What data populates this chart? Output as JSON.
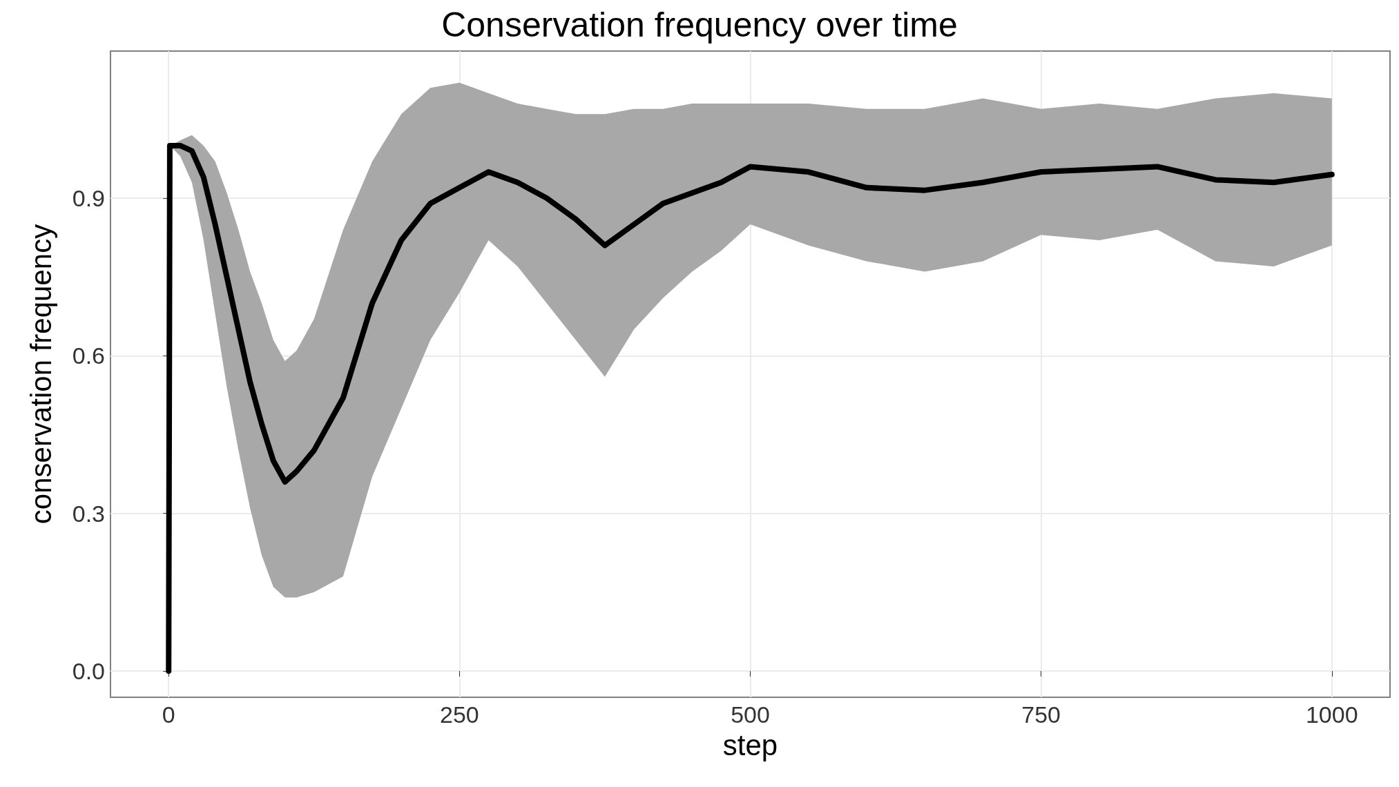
{
  "chart_data": {
    "type": "line",
    "title": "Conservation frequency over time",
    "xlabel": "step",
    "ylabel": "conservation frequency",
    "x": [
      0,
      1,
      10,
      20,
      30,
      40,
      50,
      60,
      70,
      80,
      90,
      100,
      110,
      125,
      150,
      175,
      200,
      225,
      250,
      275,
      300,
      325,
      350,
      375,
      400,
      425,
      450,
      475,
      500,
      550,
      600,
      650,
      700,
      750,
      800,
      850,
      900,
      950,
      1000
    ],
    "series": [
      {
        "color": "#000000",
        "values": [
          0,
          1.0,
          1.0,
          0.99,
          0.94,
          0.85,
          0.75,
          0.65,
          0.55,
          0.47,
          0.4,
          0.36,
          0.38,
          0.42,
          0.52,
          0.7,
          0.82,
          0.89,
          0.92,
          0.95,
          0.93,
          0.9,
          0.86,
          0.81,
          0.85,
          0.89,
          0.91,
          0.93,
          0.96,
          0.95,
          0.92,
          0.915,
          0.93,
          0.95,
          0.955,
          0.96,
          0.935,
          0.93,
          0.945
        ],
        "lower": [
          null,
          1.0,
          0.98,
          0.93,
          0.82,
          0.68,
          0.54,
          0.42,
          0.31,
          0.22,
          0.16,
          0.14,
          0.14,
          0.15,
          0.18,
          0.37,
          0.5,
          0.63,
          0.72,
          0.82,
          0.77,
          0.7,
          0.63,
          0.56,
          0.65,
          0.71,
          0.76,
          0.8,
          0.85,
          0.81,
          0.78,
          0.76,
          0.78,
          0.83,
          0.82,
          0.84,
          0.78,
          0.77,
          0.81
        ],
        "upper": [
          null,
          1.0,
          1.01,
          1.02,
          1.0,
          0.97,
          0.91,
          0.84,
          0.76,
          0.7,
          0.63,
          0.59,
          0.61,
          0.67,
          0.84,
          0.97,
          1.06,
          1.11,
          1.12,
          1.1,
          1.08,
          1.07,
          1.06,
          1.06,
          1.07,
          1.07,
          1.08,
          1.08,
          1.08,
          1.08,
          1.07,
          1.07,
          1.09,
          1.07,
          1.08,
          1.07,
          1.09,
          1.1,
          1.09
        ]
      }
    ],
    "xlim": [
      -50,
      1050
    ],
    "xticks": [
      0,
      250,
      500,
      750,
      1000
    ],
    "ylim": [
      -0.05,
      1.18
    ],
    "yticks": [
      {
        "value": 0,
        "label": "0.0"
      },
      0.3,
      0.6,
      0.9
    ],
    "grid": true,
    "marker": "none",
    "line_style": "solid"
  }
}
